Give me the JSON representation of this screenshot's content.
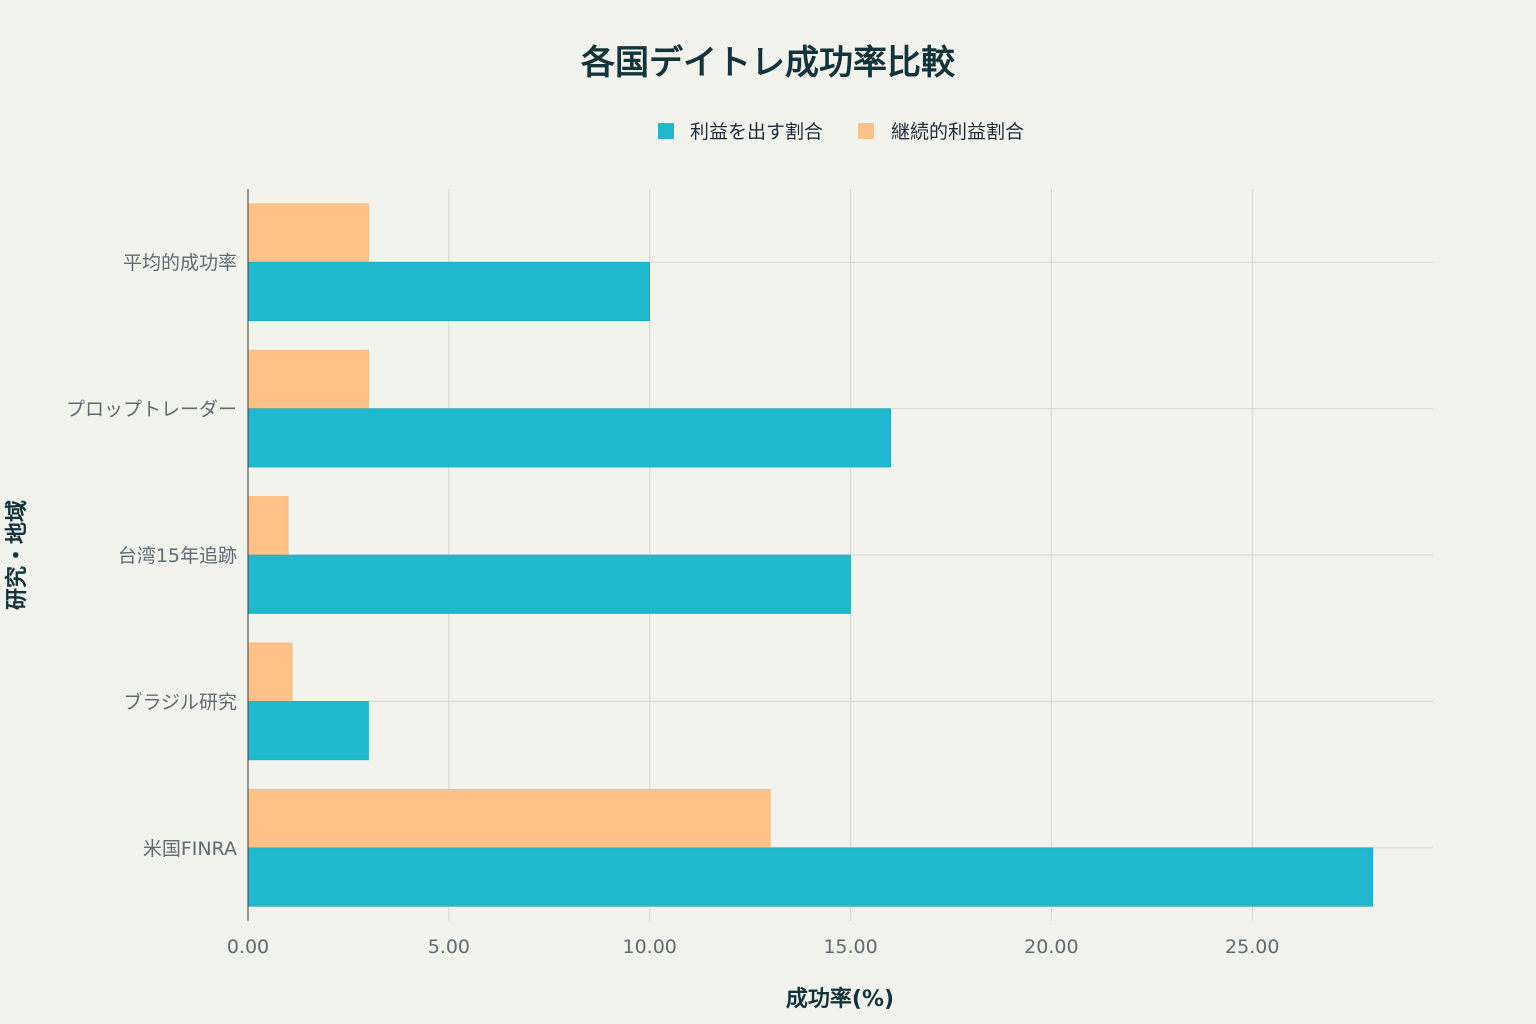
{
  "chart_data": {
    "type": "bar",
    "orientation": "horizontal",
    "title": "各国デイトレ成功率比較",
    "xlabel": "成功率(%)",
    "ylabel": "研究・地域",
    "categories": [
      "平均的成功率",
      "プロップトレーダー",
      "台湾15年追跡",
      "ブラジル研究",
      "米国FINRA"
    ],
    "series": [
      {
        "name": "利益を出す割合",
        "color": "#1fb8cd",
        "values": [
          10,
          16,
          15,
          3,
          28
        ]
      },
      {
        "name": "継続的利益割合",
        "color": "#ffc185",
        "values": [
          3,
          3,
          1,
          1.1,
          13
        ]
      }
    ],
    "xlim": [
      0,
      29.5
    ],
    "xticks": [
      0,
      5,
      10,
      15,
      20,
      25
    ],
    "xtick_labels": [
      "0.00",
      "5.00",
      "10.00",
      "15.00",
      "20.00",
      "25.00"
    ],
    "grid": true,
    "legend_position": "top-center"
  }
}
